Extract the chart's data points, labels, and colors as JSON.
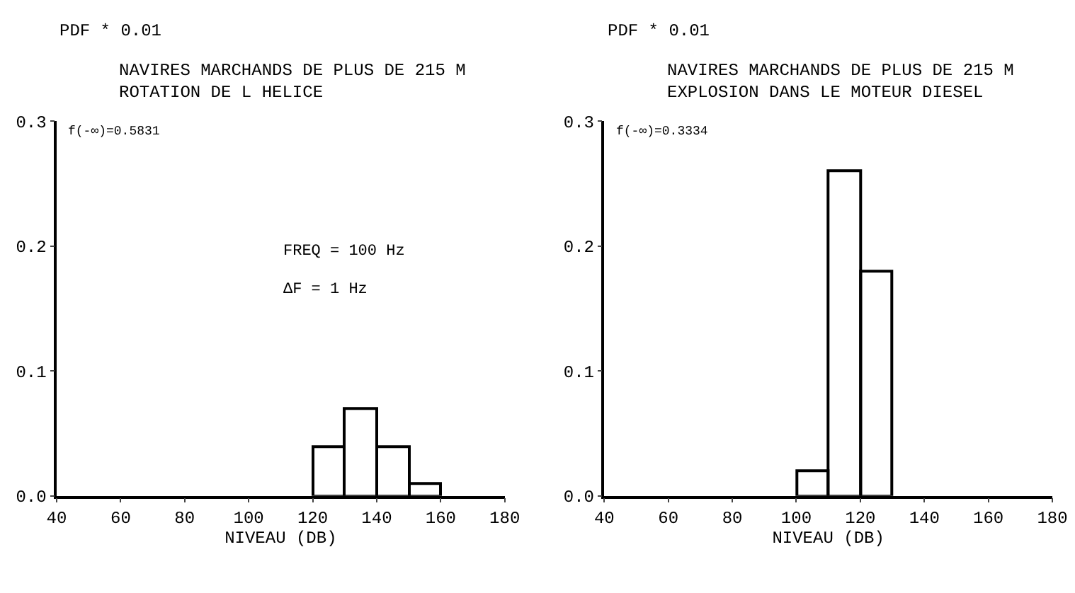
{
  "chart_data": [
    {
      "type": "histogram",
      "title": "NAVIRES MARCHANDS DE PLUS DE 215 M",
      "subtitle": "ROTATION DE L HELICE",
      "ylabel": "PDF * 0.01",
      "xlabel": "NIVEAU (DB)",
      "bins": [
        120,
        130,
        140,
        150,
        160
      ],
      "values": [
        0.04,
        0.07,
        0.04,
        0.01
      ],
      "color": "#000000",
      "xlim": [
        40,
        180
      ],
      "xticks": [
        40,
        60,
        80,
        100,
        120,
        140,
        160,
        180
      ],
      "ylim": [
        0,
        0.3
      ],
      "yticks": [
        {
          "value": 0,
          "label": "0.0"
        },
        0.1,
        0.2,
        0.3
      ],
      "annotations": [
        "f(-∞)=0.5831",
        "FREQ = 100 Hz",
        "ΔF = 1 Hz"
      ]
    },
    {
      "type": "histogram",
      "title": "NAVIRES MARCHANDS DE PLUS DE 215 M",
      "subtitle": "EXPLOSION DANS LE MOTEUR DIESEL",
      "ylabel": "PDF * 0.01",
      "xlabel": "NIVEAU (DB)",
      "bins": [
        100,
        110,
        120,
        130
      ],
      "values": [
        0.02,
        0.26,
        0.18
      ],
      "color": "#000000",
      "xlim": [
        40,
        180
      ],
      "xticks": [
        40,
        60,
        80,
        100,
        120,
        140,
        160,
        180
      ],
      "ylim": [
        0,
        0.3
      ],
      "yticks": [
        {
          "value": 0,
          "label": "0.0"
        },
        0.1,
        0.2,
        0.3
      ],
      "annotations": [
        "f(-∞)=0.3334"
      ]
    }
  ]
}
